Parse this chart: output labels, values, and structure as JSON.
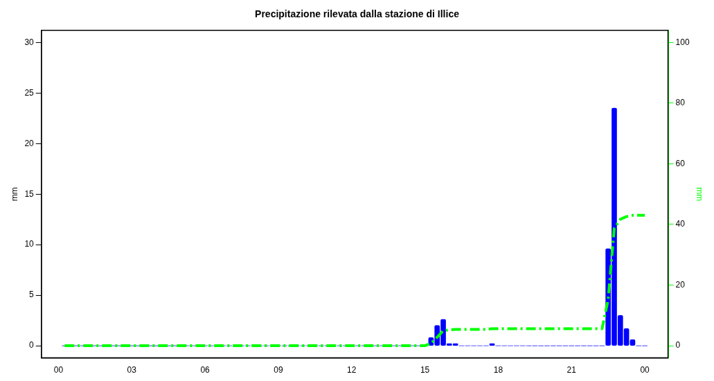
{
  "chart_data": {
    "type": "bar",
    "title": "Precipitazione rilevata dalla stazione di Illice",
    "ylabel": "mm",
    "y2label": "mm",
    "x": [
      0.25,
      0.5,
      0.75,
      1,
      1.25,
      1.5,
      1.75,
      2,
      2.25,
      2.5,
      2.75,
      3,
      3.25,
      3.5,
      3.75,
      4,
      4.25,
      4.5,
      4.75,
      5,
      5.25,
      5.5,
      5.75,
      6,
      6.25,
      6.5,
      6.75,
      7,
      7.25,
      7.5,
      7.75,
      8,
      8.25,
      8.5,
      8.75,
      9,
      9.25,
      9.5,
      9.75,
      10,
      10.25,
      10.5,
      10.75,
      11,
      11.25,
      11.5,
      11.75,
      12,
      12.25,
      12.5,
      12.75,
      13,
      13.25,
      13.5,
      13.75,
      14,
      14.25,
      14.5,
      14.75,
      15,
      15.25,
      15.5,
      15.75,
      16,
      16.25,
      16.5,
      16.75,
      17,
      17.25,
      17.5,
      17.75,
      18,
      18.25,
      18.5,
      18.75,
      19,
      19.25,
      19.5,
      19.75,
      20,
      20.25,
      20.5,
      20.75,
      21,
      21.25,
      21.5,
      21.75,
      22,
      22.25,
      22.5,
      22.75,
      23,
      23.25,
      23.5,
      23.75,
      24
    ],
    "series": [
      {
        "color": "#0000ff",
        "values": [
          0,
          0,
          0,
          0,
          0,
          0,
          0,
          0,
          0,
          0,
          0,
          0,
          0,
          0,
          0,
          0,
          0,
          0,
          0,
          0,
          0,
          0,
          0,
          0,
          0,
          0,
          0,
          0,
          0,
          0,
          0,
          0,
          0,
          0,
          0,
          0,
          0,
          0,
          0,
          0,
          0,
          0,
          0,
          0,
          0,
          0,
          0,
          0,
          0,
          0,
          0,
          0,
          0,
          0,
          0,
          0,
          0,
          0,
          0,
          0,
          0.8,
          2.0,
          2.6,
          0.2,
          0.2,
          0,
          0,
          0,
          0,
          0,
          0.2,
          0,
          0,
          0,
          0,
          0,
          0,
          0,
          0,
          0,
          0,
          0,
          0,
          0,
          0,
          0,
          0,
          0,
          0,
          9.6,
          23.5,
          3.0,
          1.7,
          0.6,
          0,
          0
        ]
      },
      {
        "type": "line",
        "axis": "y2",
        "color": "#00ff00",
        "line_style": "dashed",
        "values": [
          0,
          0,
          0,
          0,
          0,
          0,
          0,
          0,
          0,
          0,
          0,
          0,
          0,
          0,
          0,
          0,
          0,
          0,
          0,
          0,
          0,
          0,
          0,
          0,
          0,
          0,
          0,
          0,
          0,
          0,
          0,
          0,
          0,
          0,
          0,
          0,
          0,
          0,
          0,
          0,
          0,
          0,
          0,
          0,
          0,
          0,
          0,
          0,
          0,
          0,
          0,
          0,
          0,
          0,
          0,
          0,
          0,
          0,
          0,
          0,
          0.8,
          2.8,
          5.0,
          5.2,
          5.4,
          5.4,
          5.4,
          5.4,
          5.4,
          5.4,
          5.6,
          5.6,
          5.6,
          5.6,
          5.6,
          5.6,
          5.6,
          5.6,
          5.6,
          5.6,
          5.6,
          5.6,
          5.6,
          5.6,
          5.6,
          5.6,
          5.6,
          5.6,
          5.6,
          15.2,
          38.7,
          41.7,
          42.6,
          43.0,
          43.0,
          43.0
        ]
      }
    ],
    "xlim": [
      -0.7,
      24.95
    ],
    "xticks": [
      {
        "value": 0,
        "label": "00"
      },
      {
        "value": 3,
        "label": "03"
      },
      {
        "value": 6,
        "label": "06"
      },
      {
        "value": 9,
        "label": "09"
      },
      {
        "value": 12,
        "label": "12"
      },
      {
        "value": 15,
        "label": "15"
      },
      {
        "value": 18,
        "label": "18"
      },
      {
        "value": 21,
        "label": "21"
      },
      {
        "value": 24,
        "label": "00"
      }
    ],
    "ylim": [
      -1.2,
      31.2
    ],
    "yticks": [
      0,
      5,
      10,
      15,
      20,
      25,
      30
    ],
    "y2lim": [
      -4,
      104
    ],
    "y2ticks": [
      0,
      20,
      40,
      60,
      80,
      100
    ],
    "grid": false,
    "legend": false
  }
}
